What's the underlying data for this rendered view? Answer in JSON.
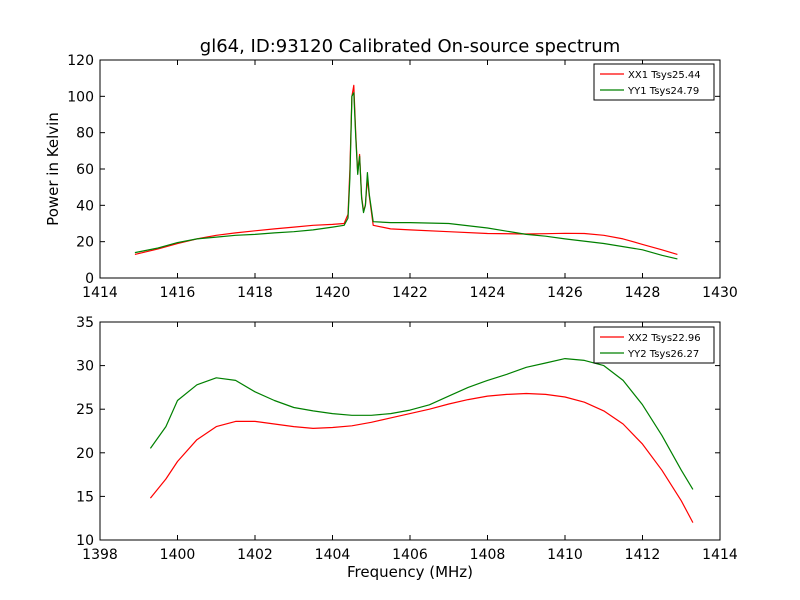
{
  "figure": {
    "title": "gl64, ID:93120 Calibrated On-source spectrum"
  },
  "chart_data": [
    {
      "type": "line",
      "title": "gl64, ID:93120 Calibrated On-source spectrum",
      "xlabel": "",
      "ylabel": "Power in Kelvin",
      "xlim": [
        1414,
        1430
      ],
      "ylim": [
        0,
        120
      ],
      "xticks": [
        1414,
        1416,
        1418,
        1420,
        1422,
        1424,
        1426,
        1428,
        1430
      ],
      "yticks": [
        0,
        20,
        40,
        60,
        80,
        100,
        120
      ],
      "grid": false,
      "legend_position": "top-right",
      "series": [
        {
          "name": "XX1 Tsys25.44",
          "color": "#ff0000",
          "points": [
            [
              1414.9,
              13
            ],
            [
              1415.5,
              16
            ],
            [
              1416,
              19
            ],
            [
              1416.5,
              21.5
            ],
            [
              1417,
              23.5
            ],
            [
              1417.5,
              24.8
            ],
            [
              1418,
              26
            ],
            [
              1418.5,
              27
            ],
            [
              1419,
              28
            ],
            [
              1419.5,
              29
            ],
            [
              1420,
              29.5
            ],
            [
              1420.3,
              30
            ],
            [
              1420.4,
              35
            ],
            [
              1420.45,
              60
            ],
            [
              1420.5,
              100
            ],
            [
              1420.55,
              106
            ],
            [
              1420.6,
              80
            ],
            [
              1420.65,
              58
            ],
            [
              1420.7,
              68
            ],
            [
              1420.75,
              45
            ],
            [
              1420.8,
              37
            ],
            [
              1420.85,
              40
            ],
            [
              1420.9,
              55
            ],
            [
              1420.95,
              45
            ],
            [
              1421.05,
              29
            ],
            [
              1421.5,
              27
            ],
            [
              1422,
              26.5
            ],
            [
              1423,
              25.5
            ],
            [
              1424,
              24.5
            ],
            [
              1425,
              24.2
            ],
            [
              1425.5,
              24.4
            ],
            [
              1426,
              24.6
            ],
            [
              1426.5,
              24.5
            ],
            [
              1427,
              23.5
            ],
            [
              1427.5,
              21.5
            ],
            [
              1428,
              18.5
            ],
            [
              1428.5,
              15.5
            ],
            [
              1428.9,
              13
            ]
          ]
        },
        {
          "name": "YY1 Tsys24.79",
          "color": "#008000",
          "points": [
            [
              1414.9,
              14
            ],
            [
              1415.5,
              16.5
            ],
            [
              1416,
              19.5
            ],
            [
              1416.5,
              21.5
            ],
            [
              1417,
              22.5
            ],
            [
              1417.5,
              23.5
            ],
            [
              1418,
              24
            ],
            [
              1418.5,
              24.8
            ],
            [
              1419,
              25.5
            ],
            [
              1419.5,
              26.5
            ],
            [
              1420,
              28
            ],
            [
              1420.3,
              29
            ],
            [
              1420.4,
              33
            ],
            [
              1420.45,
              55
            ],
            [
              1420.5,
              100
            ],
            [
              1420.55,
              102
            ],
            [
              1420.6,
              78
            ],
            [
              1420.65,
              57
            ],
            [
              1420.7,
              67
            ],
            [
              1420.75,
              44
            ],
            [
              1420.8,
              36
            ],
            [
              1420.85,
              40
            ],
            [
              1420.9,
              58
            ],
            [
              1420.95,
              46
            ],
            [
              1421.05,
              31
            ],
            [
              1421.5,
              30.5
            ],
            [
              1422,
              30.5
            ],
            [
              1423,
              30
            ],
            [
              1424,
              27.5
            ],
            [
              1425,
              24
            ],
            [
              1425.5,
              23
            ],
            [
              1426,
              21.5
            ],
            [
              1427,
              19
            ],
            [
              1428,
              15.5
            ],
            [
              1428.5,
              12.5
            ],
            [
              1428.9,
              10.5
            ]
          ]
        }
      ]
    },
    {
      "type": "line",
      "title": "",
      "xlabel": "Frequency (MHz)",
      "ylabel": "",
      "xlim": [
        1398,
        1414
      ],
      "ylim": [
        10,
        35
      ],
      "xticks": [
        1398,
        1400,
        1402,
        1404,
        1406,
        1408,
        1410,
        1412,
        1414
      ],
      "yticks": [
        10,
        15,
        20,
        25,
        30,
        35
      ],
      "grid": false,
      "legend_position": "top-right",
      "series": [
        {
          "name": "XX2 Tsys22.96",
          "color": "#ff0000",
          "points": [
            [
              1399.3,
              14.8
            ],
            [
              1399.7,
              17
            ],
            [
              1400,
              19
            ],
            [
              1400.5,
              21.5
            ],
            [
              1401,
              23
            ],
            [
              1401.5,
              23.6
            ],
            [
              1402,
              23.6
            ],
            [
              1402.5,
              23.3
            ],
            [
              1403,
              23
            ],
            [
              1403.5,
              22.8
            ],
            [
              1404,
              22.9
            ],
            [
              1404.5,
              23.1
            ],
            [
              1405,
              23.5
            ],
            [
              1405.5,
              24
            ],
            [
              1406,
              24.5
            ],
            [
              1406.5,
              25
            ],
            [
              1407,
              25.6
            ],
            [
              1407.5,
              26.1
            ],
            [
              1408,
              26.5
            ],
            [
              1408.5,
              26.7
            ],
            [
              1409,
              26.8
            ],
            [
              1409.5,
              26.7
            ],
            [
              1410,
              26.4
            ],
            [
              1410.5,
              25.8
            ],
            [
              1411,
              24.8
            ],
            [
              1411.5,
              23.3
            ],
            [
              1412,
              21
            ],
            [
              1412.5,
              18
            ],
            [
              1413,
              14.5
            ],
            [
              1413.3,
              12
            ]
          ]
        },
        {
          "name": "YY2 Tsys26.27",
          "color": "#008000",
          "points": [
            [
              1399.3,
              20.5
            ],
            [
              1399.7,
              23
            ],
            [
              1400,
              26
            ],
            [
              1400.5,
              27.8
            ],
            [
              1401,
              28.6
            ],
            [
              1401.5,
              28.3
            ],
            [
              1402,
              27
            ],
            [
              1402.5,
              26
            ],
            [
              1403,
              25.2
            ],
            [
              1403.5,
              24.8
            ],
            [
              1404,
              24.5
            ],
            [
              1404.5,
              24.3
            ],
            [
              1405,
              24.3
            ],
            [
              1405.5,
              24.5
            ],
            [
              1406,
              24.9
            ],
            [
              1406.5,
              25.5
            ],
            [
              1407,
              26.5
            ],
            [
              1407.5,
              27.5
            ],
            [
              1408,
              28.3
            ],
            [
              1408.5,
              29
            ],
            [
              1409,
              29.8
            ],
            [
              1409.5,
              30.3
            ],
            [
              1410,
              30.8
            ],
            [
              1410.5,
              30.6
            ],
            [
              1411,
              30
            ],
            [
              1411.5,
              28.3
            ],
            [
              1412,
              25.5
            ],
            [
              1412.5,
              22
            ],
            [
              1413,
              18
            ],
            [
              1413.3,
              15.8
            ]
          ]
        }
      ]
    }
  ]
}
